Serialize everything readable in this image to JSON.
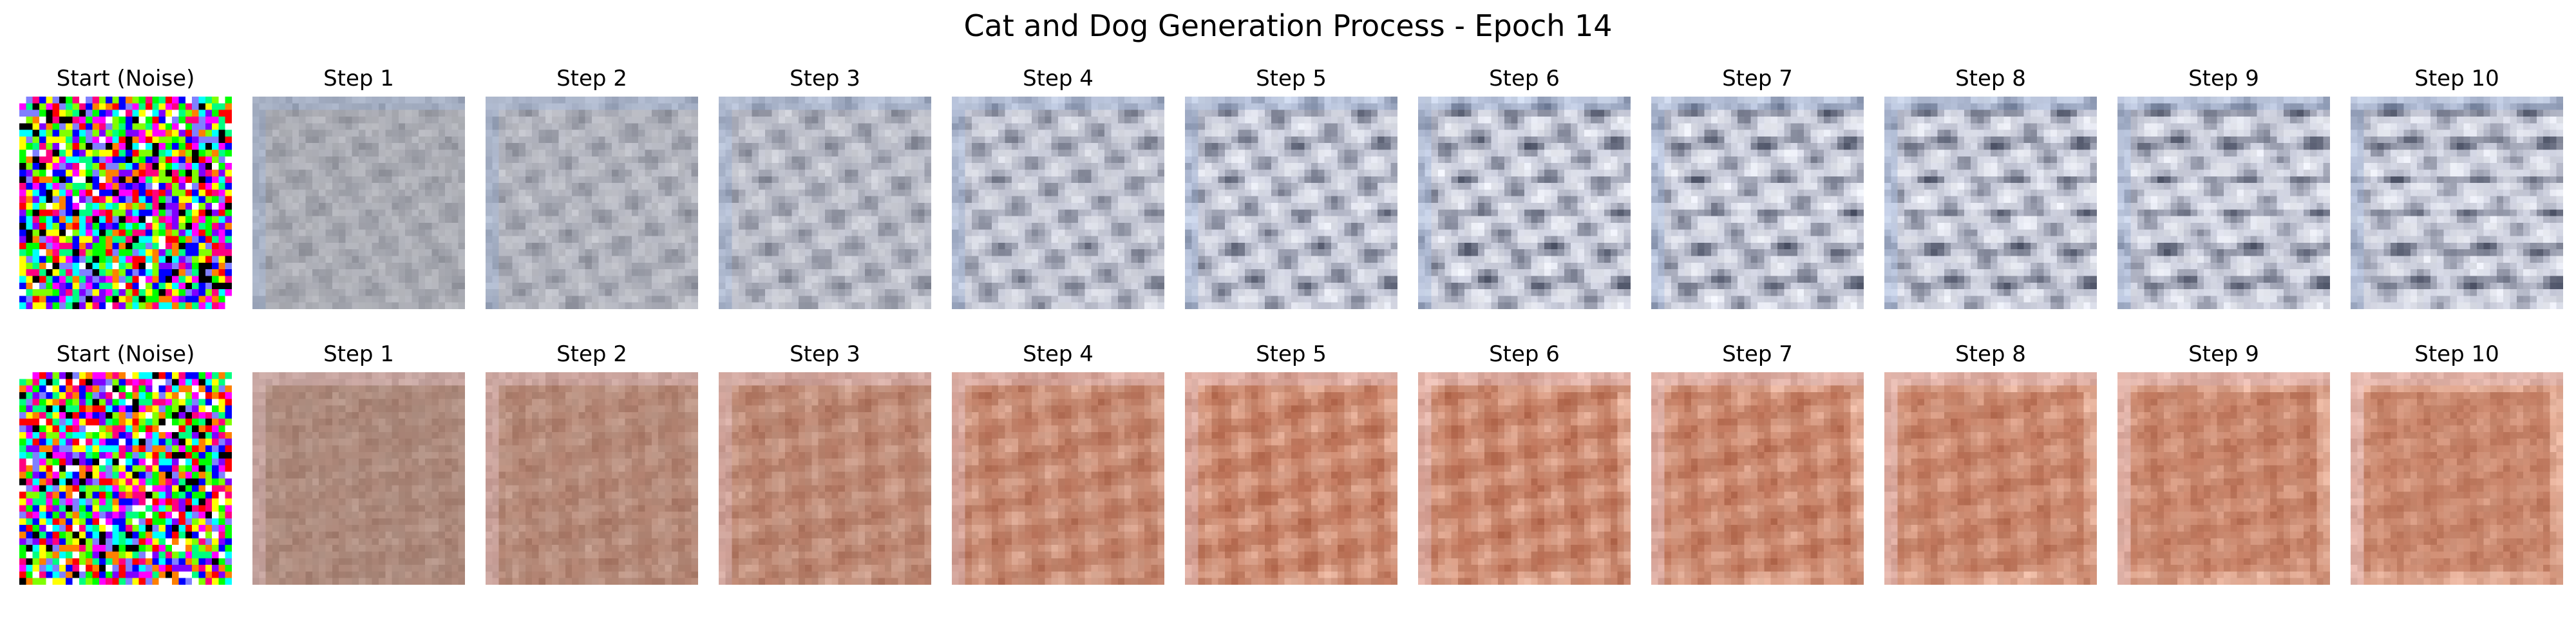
{
  "figure": {
    "title": "Cat and Dog Generation Process - Epoch 14"
  },
  "rows": [
    {
      "panels": [
        {
          "title": "Start (Noise)"
        },
        {
          "title": "Step 1"
        },
        {
          "title": "Step 2"
        },
        {
          "title": "Step 3"
        },
        {
          "title": "Step 4"
        },
        {
          "title": "Step 5"
        },
        {
          "title": "Step 6"
        },
        {
          "title": "Step 7"
        },
        {
          "title": "Step 8"
        },
        {
          "title": "Step 9"
        },
        {
          "title": "Step 10"
        }
      ]
    },
    {
      "panels": [
        {
          "title": "Start (Noise)"
        },
        {
          "title": "Step 1"
        },
        {
          "title": "Step 2"
        },
        {
          "title": "Step 3"
        },
        {
          "title": "Step 4"
        },
        {
          "title": "Step 5"
        },
        {
          "title": "Step 6"
        },
        {
          "title": "Step 7"
        },
        {
          "title": "Step 8"
        },
        {
          "title": "Step 9"
        },
        {
          "title": "Step 10"
        }
      ]
    }
  ],
  "colors": {
    "row1_target": "#c6c9d8",
    "row1_dark": "#4a5064",
    "row1_light": "#f4f6fb",
    "row1_edge": "#9fb6dc",
    "row2_target": "#c8866c",
    "row2_dark": "#a8553a",
    "row2_light": "#f2c4b0",
    "row2_edge": "#e8c8d0"
  }
}
